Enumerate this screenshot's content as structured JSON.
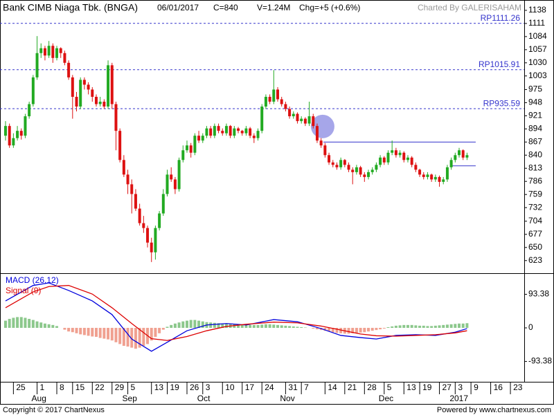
{
  "chart_data": [
    {
      "type": "candlestick",
      "title": "Bank CIMB Niaga Tbk. (BNGA)",
      "date": "06/01/2017",
      "close_label": "C=840",
      "volume_label": "V=1.24M",
      "change_label": "Chg=+5 (+0.6%)",
      "credit": "Charted By GALERISAHAM",
      "up_color": "#22aa22",
      "down_color": "#dd1111",
      "xlim": [
        -1.4,
        131.5
      ],
      "ylim": [
        597,
        1155
      ],
      "yticks": [
        1138,
        1111,
        1084,
        1057,
        1030,
        1003,
        975,
        948,
        921,
        894,
        867,
        840,
        813,
        786,
        759,
        732,
        704,
        677,
        650,
        623
      ],
      "levels": [
        {
          "value": 1111.26,
          "label": "RP1111.26"
        },
        {
          "value": 1015.91,
          "label": "RP1015.91"
        },
        {
          "value": 935.59,
          "label": "RP935.59"
        }
      ],
      "level_color": "#3333cc",
      "lines": [
        {
          "value": 867,
          "x": [
            80.6,
            119.2
          ]
        },
        {
          "value": 818,
          "x": [
            112.7,
            119.2
          ]
        }
      ],
      "highlight": {
        "x": 80.4,
        "y": 899,
        "color": "#8080e0"
      },
      "candles": [
        [
          880,
          910,
          870,
          900
        ],
        [
          900,
          905,
          855,
          860
        ],
        [
          860,
          885,
          855,
          875
        ],
        [
          875,
          900,
          870,
          890
        ],
        [
          890,
          895,
          872,
          880
        ],
        [
          880,
          925,
          875,
          920
        ],
        [
          920,
          950,
          915,
          945
        ],
        [
          945,
          1005,
          940,
          1000
        ],
        [
          1000,
          1085,
          995,
          1050
        ],
        [
          1050,
          1070,
          1040,
          1060
        ],
        [
          1060,
          1065,
          1035,
          1045
        ],
        [
          1045,
          1075,
          1040,
          1065
        ],
        [
          1065,
          1070,
          1030,
          1040
        ],
        [
          1040,
          1065,
          1035,
          1060
        ],
        [
          1060,
          1062,
          1040,
          1050
        ],
        [
          1050,
          1055,
          1025,
          1030
        ],
        [
          1030,
          1035,
          995,
          1000
        ],
        [
          1000,
          1005,
          915,
          960
        ],
        [
          960,
          970,
          930,
          940
        ],
        [
          940,
          1000,
          935,
          995
        ],
        [
          995,
          1000,
          975,
          985
        ],
        [
          985,
          990,
          965,
          975
        ],
        [
          975,
          980,
          950,
          960
        ],
        [
          960,
          965,
          940,
          945
        ],
        [
          945,
          960,
          940,
          950
        ],
        [
          950,
          955,
          935,
          940
        ],
        [
          940,
          1035,
          935,
          1025
        ],
        [
          1025,
          1030,
          935,
          945
        ],
        [
          945,
          950,
          850,
          890
        ],
        [
          890,
          895,
          825,
          830
        ],
        [
          830,
          840,
          795,
          800
        ],
        [
          800,
          810,
          760,
          780
        ],
        [
          780,
          790,
          720,
          760
        ],
        [
          760,
          770,
          725,
          730
        ],
        [
          730,
          740,
          695,
          700
        ],
        [
          700,
          715,
          680,
          690
        ],
        [
          690,
          695,
          650,
          660
        ],
        [
          660,
          670,
          620,
          640
        ],
        [
          640,
          695,
          625,
          690
        ],
        [
          690,
          725,
          685,
          720
        ],
        [
          720,
          770,
          715,
          760
        ],
        [
          760,
          810,
          755,
          800
        ],
        [
          800,
          815,
          785,
          790
        ],
        [
          790,
          795,
          760,
          770
        ],
        [
          770,
          835,
          765,
          830
        ],
        [
          830,
          860,
          825,
          850
        ],
        [
          850,
          870,
          845,
          860
        ],
        [
          860,
          865,
          835,
          845
        ],
        [
          845,
          885,
          840,
          880
        ],
        [
          880,
          890,
          865,
          870
        ],
        [
          870,
          885,
          865,
          880
        ],
        [
          880,
          900,
          875,
          895
        ],
        [
          895,
          900,
          875,
          880
        ],
        [
          880,
          905,
          875,
          900
        ],
        [
          900,
          905,
          885,
          890
        ],
        [
          890,
          895,
          880,
          885
        ],
        [
          885,
          905,
          880,
          900
        ],
        [
          900,
          902,
          875,
          880
        ],
        [
          880,
          900,
          875,
          895
        ],
        [
          895,
          898,
          885,
          890
        ],
        [
          890,
          892,
          880,
          885
        ],
        [
          885,
          900,
          880,
          895
        ],
        [
          895,
          898,
          875,
          880
        ],
        [
          880,
          885,
          865,
          875
        ],
        [
          875,
          895,
          870,
          890
        ],
        [
          890,
          945,
          885,
          940
        ],
        [
          940,
          965,
          935,
          960
        ],
        [
          960,
          965,
          945,
          950
        ],
        [
          950,
          1015,
          945,
          975
        ],
        [
          975,
          980,
          950,
          955
        ],
        [
          955,
          960,
          940,
          945
        ],
        [
          945,
          950,
          930,
          935
        ],
        [
          935,
          940,
          915,
          920
        ],
        [
          920,
          930,
          915,
          925
        ],
        [
          925,
          928,
          905,
          910
        ],
        [
          910,
          920,
          905,
          915
        ],
        [
          915,
          918,
          900,
          905
        ],
        [
          905,
          950,
          900,
          920
        ],
        [
          920,
          925,
          895,
          900
        ],
        [
          900,
          905,
          865,
          870
        ],
        [
          870,
          875,
          855,
          860
        ],
        [
          860,
          865,
          835,
          840
        ],
        [
          840,
          845,
          820,
          825
        ],
        [
          825,
          830,
          815,
          820
        ],
        [
          820,
          825,
          810,
          815
        ],
        [
          815,
          835,
          810,
          830
        ],
        [
          830,
          832,
          815,
          820
        ],
        [
          820,
          825,
          805,
          810
        ],
        [
          810,
          815,
          780,
          805
        ],
        [
          805,
          820,
          800,
          815
        ],
        [
          815,
          818,
          795,
          800
        ],
        [
          800,
          805,
          785,
          795
        ],
        [
          795,
          810,
          790,
          805
        ],
        [
          805,
          815,
          800,
          810
        ],
        [
          810,
          825,
          805,
          820
        ],
        [
          820,
          840,
          815,
          835
        ],
        [
          835,
          838,
          820,
          825
        ],
        [
          825,
          850,
          820,
          845
        ],
        [
          845,
          870,
          840,
          850
        ],
        [
          850,
          855,
          835,
          840
        ],
        [
          840,
          850,
          835,
          845
        ],
        [
          845,
          848,
          825,
          830
        ],
        [
          830,
          840,
          825,
          835
        ],
        [
          835,
          838,
          815,
          820
        ],
        [
          820,
          825,
          805,
          810
        ],
        [
          810,
          812,
          795,
          800
        ],
        [
          800,
          805,
          790,
          795
        ],
        [
          795,
          805,
          790,
          800
        ],
        [
          800,
          802,
          785,
          790
        ],
        [
          790,
          800,
          785,
          795
        ],
        [
          795,
          798,
          775,
          785
        ],
        [
          785,
          795,
          780,
          790
        ],
        [
          790,
          820,
          785,
          815
        ],
        [
          815,
          835,
          810,
          830
        ],
        [
          830,
          845,
          825,
          840
        ],
        [
          840,
          855,
          835,
          850
        ],
        [
          850,
          852,
          830,
          835
        ],
        [
          835,
          845,
          830,
          840
        ]
      ]
    },
    {
      "type": "macd",
      "xlim": [
        -1.4,
        131.5
      ],
      "ylim": [
        -150,
        152
      ],
      "yticks": [
        93.38,
        0,
        -93.38
      ],
      "x": [
        0,
        7,
        11,
        16,
        22,
        27,
        32,
        37,
        41,
        46,
        51,
        56,
        61,
        68,
        74,
        80,
        85,
        90,
        94,
        99,
        104,
        109,
        114,
        117
      ],
      "series": [
        {
          "name": "MACD (26,12)",
          "color": "#0000dd",
          "values": [
            75,
            118,
            125,
            104,
            75,
            37,
            -31,
            -65,
            -40,
            -8,
            8,
            12,
            8,
            23,
            17,
            -2,
            -21,
            -27,
            -31,
            -21,
            -19,
            -21,
            -12,
            -2
          ]
        },
        {
          "name": "Signal (9)",
          "color": "#dd0000",
          "values": [
            56,
            100,
            115,
            118,
            94,
            56,
            12,
            -30,
            -35,
            -24,
            -8,
            4,
            10,
            16,
            14,
            5,
            -6,
            -17,
            -22,
            -23,
            -21,
            -19,
            -14,
            -8
          ]
        }
      ],
      "histogram": {
        "up_color": "#8cc88c",
        "down_color": "#f0a090",
        "values": [
          20,
          25,
          28,
          30,
          30,
          28,
          25,
          22,
          18,
          15,
          12,
          10,
          8,
          5,
          0,
          -5,
          -10,
          -12,
          -15,
          -18,
          -20,
          -22,
          -24,
          -25,
          -28,
          -30,
          -32,
          -35,
          -40,
          -45,
          -50,
          -52,
          -55,
          -58,
          -55,
          -50,
          -45,
          -35,
          -25,
          -15,
          -5,
          3,
          8,
          12,
          15,
          18,
          20,
          22,
          22,
          20,
          18,
          16,
          15,
          14,
          13,
          12,
          12,
          11,
          10,
          10,
          9,
          9,
          8,
          8,
          8,
          9,
          10,
          10,
          9,
          8,
          7,
          6,
          5,
          4,
          3,
          2,
          1,
          0,
          -2,
          -4,
          -6,
          -8,
          -10,
          -12,
          -14,
          -15,
          -16,
          -16,
          -15,
          -14,
          -13,
          -12,
          -10,
          -8,
          -6,
          -4,
          -2,
          2,
          4,
          6,
          7,
          8,
          8,
          8,
          7,
          6,
          6,
          5,
          5,
          6,
          7,
          8,
          9,
          10,
          11,
          12,
          12,
          13
        ]
      },
      "xticks": [
        {
          "value": 2,
          "label": "25"
        },
        {
          "value": 8,
          "label": "1"
        },
        {
          "value": 13,
          "label": "8"
        },
        {
          "value": 17,
          "label": "15"
        },
        {
          "value": 22,
          "label": "22"
        },
        {
          "value": 27,
          "label": "29"
        },
        {
          "value": 31,
          "label": "5"
        },
        {
          "value": 37,
          "label": "13"
        },
        {
          "value": 41,
          "label": "19"
        },
        {
          "value": 46,
          "label": "26"
        },
        {
          "value": 50,
          "label": "3"
        },
        {
          "value": 55,
          "label": "10"
        },
        {
          "value": 60,
          "label": "17"
        },
        {
          "value": 65,
          "label": "24"
        },
        {
          "value": 71,
          "label": "31"
        },
        {
          "value": 75,
          "label": "7"
        },
        {
          "value": 81,
          "label": "14"
        },
        {
          "value": 86,
          "label": "21"
        },
        {
          "value": 91,
          "label": "28"
        },
        {
          "value": 96,
          "label": "5"
        },
        {
          "value": 101,
          "label": "13"
        },
        {
          "value": 105,
          "label": "19"
        },
        {
          "value": 110,
          "label": "27"
        },
        {
          "value": 114,
          "label": "3"
        },
        {
          "value": 118,
          "label": "9"
        },
        {
          "value": 123,
          "label": "16"
        },
        {
          "value": 128,
          "label": "23"
        }
      ],
      "month_labels": [
        {
          "value": 8,
          "label": "Aug"
        },
        {
          "value": 31,
          "label": "Sep"
        },
        {
          "value": 50,
          "label": "Oct"
        },
        {
          "value": 71,
          "label": "Nov"
        },
        {
          "value": 96,
          "label": "Dec"
        },
        {
          "value": 114,
          "label": "2017"
        }
      ]
    }
  ],
  "footer": {
    "left": "Copyright © 2017 ChartNexus",
    "right": "Powered by www.chartnexus.com"
  }
}
